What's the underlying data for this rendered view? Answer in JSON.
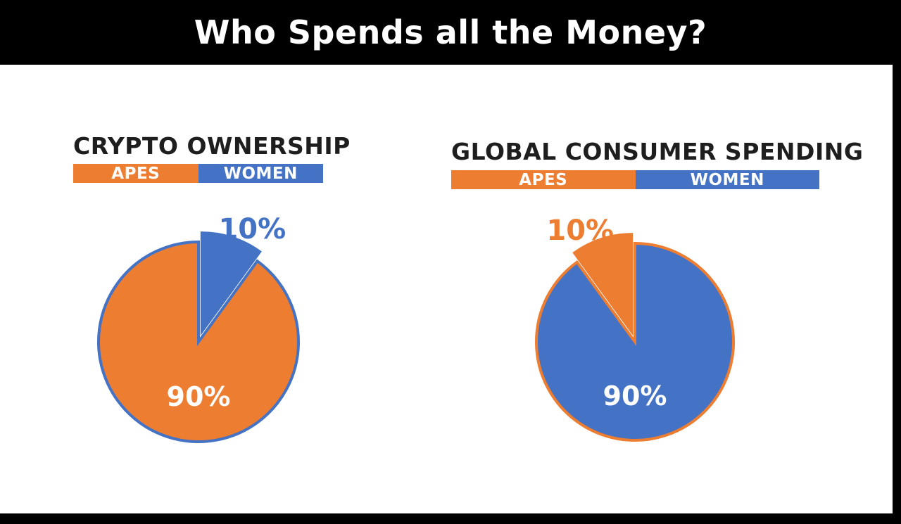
{
  "title": "Who Spends all the Money?",
  "colors": {
    "apes": "#ED7D31",
    "women": "#4472C4"
  },
  "chart_data": [
    {
      "type": "pie",
      "title": "CRYPTO OWNERSHIP",
      "legend": "top",
      "slices": [
        {
          "label": "APES",
          "value": 90,
          "display": "90%",
          "color": "#ED7D31"
        },
        {
          "label": "WOMEN",
          "value": 10,
          "display": "10%",
          "color": "#4472C4"
        }
      ],
      "exploded": "WOMEN"
    },
    {
      "type": "pie",
      "title": "GLOBAL CONSUMER SPENDING",
      "legend": "top",
      "slices": [
        {
          "label": "APES",
          "value": 10,
          "display": "10%",
          "color": "#ED7D31"
        },
        {
          "label": "WOMEN",
          "value": 90,
          "display": "90%",
          "color": "#4472C4"
        }
      ],
      "exploded": "APES"
    }
  ]
}
